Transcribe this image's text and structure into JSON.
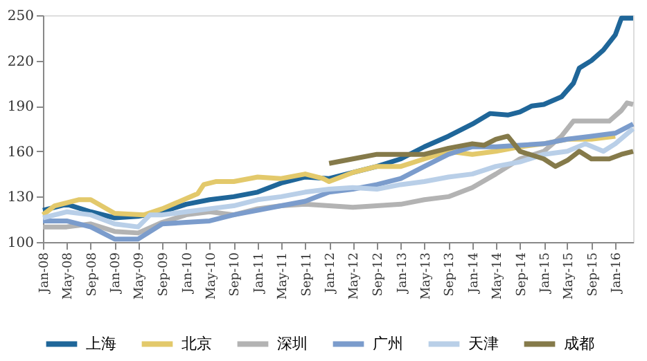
{
  "chart_data": {
    "type": "line",
    "legend": "bottom",
    "grid": false,
    "line_style": "solid",
    "marker": "none",
    "xlim": [
      "2008-01",
      "2016-04"
    ],
    "xticks": [
      {
        "value": "2008-01",
        "label": "Jan-08"
      },
      {
        "value": "2008-05",
        "label": "May-08"
      },
      {
        "value": "2008-09",
        "label": "Sep-08"
      },
      {
        "value": "2009-01",
        "label": "Jan-09"
      },
      {
        "value": "2009-05",
        "label": "May-09"
      },
      {
        "value": "2009-09",
        "label": "Sep-09"
      },
      {
        "value": "2010-01",
        "label": "Jan-10"
      },
      {
        "value": "2010-05",
        "label": "May-10"
      },
      {
        "value": "2010-09",
        "label": "Sep-10"
      },
      {
        "value": "2011-01",
        "label": "Jan-11"
      },
      {
        "value": "2011-05",
        "label": "May-11"
      },
      {
        "value": "2011-09",
        "label": "Sep-11"
      },
      {
        "value": "2012-01",
        "label": "Jan-12"
      },
      {
        "value": "2012-05",
        "label": "May-12"
      },
      {
        "value": "2012-09",
        "label": "Sep-12"
      },
      {
        "value": "2013-01",
        "label": "Jan-13"
      },
      {
        "value": "2013-05",
        "label": "May-13"
      },
      {
        "value": "2013-09",
        "label": "Sep-13"
      },
      {
        "value": "2014-01",
        "label": "Jan-14"
      },
      {
        "value": "2014-05",
        "label": "May-14"
      },
      {
        "value": "2014-09",
        "label": "Sep-14"
      },
      {
        "value": "2015-01",
        "label": "Jan-15"
      },
      {
        "value": "2015-05",
        "label": "May-15"
      },
      {
        "value": "2015-09",
        "label": "Sep-15"
      },
      {
        "value": "2016-01",
        "label": "Jan-16"
      }
    ],
    "ylim": [
      100,
      250
    ],
    "yticks": [
      100,
      130,
      160,
      190,
      220,
      250
    ],
    "series": [
      {
        "name": "上海",
        "color": "#1f6699",
        "x": [
          "2008-01",
          "2008-05",
          "2008-09",
          "2009-01",
          "2009-05",
          "2009-09",
          "2010-01",
          "2010-05",
          "2010-09",
          "2011-01",
          "2011-05",
          "2011-09",
          "2012-01",
          "2012-05",
          "2012-09",
          "2013-01",
          "2013-05",
          "2013-09",
          "2014-01",
          "2014-04",
          "2014-07",
          "2014-09",
          "2014-11",
          "2015-01",
          "2015-04",
          "2015-06",
          "2015-07",
          "2015-09",
          "2015-11",
          "2016-01",
          "2016-02",
          "2016-04"
        ],
        "values": [
          121,
          125,
          120,
          116,
          117,
          120,
          125,
          128,
          130,
          133,
          139,
          143,
          142,
          146,
          150,
          155,
          163,
          170,
          178,
          185,
          184,
          186,
          190,
          191,
          196,
          205,
          215,
          220,
          227,
          237,
          248,
          248
        ]
      },
      {
        "name": "北京",
        "color": "#e3c96b",
        "x": [
          "2008-01",
          "2008-03",
          "2008-07",
          "2008-09",
          "2009-01",
          "2009-06",
          "2009-09",
          "2009-12",
          "2010-03",
          "2010-04",
          "2010-06",
          "2010-09",
          "2011-01",
          "2011-05",
          "2011-09",
          "2011-12",
          "2012-01",
          "2012-05",
          "2012-09",
          "2013-01",
          "2013-05",
          "2013-09",
          "2014-01",
          "2014-05",
          "2014-09",
          "2015-01",
          "2015-05",
          "2015-09",
          "2016-01"
        ],
        "values": [
          118,
          124,
          128,
          128,
          119,
          118,
          122,
          127,
          132,
          138,
          140,
          140,
          143,
          142,
          145,
          142,
          140,
          146,
          150,
          150,
          155,
          160,
          158,
          160,
          163,
          165,
          168,
          168,
          170
        ]
      },
      {
        "name": "深圳",
        "color": "#b3b3b3",
        "x": [
          "2008-01",
          "2008-05",
          "2008-09",
          "2009-01",
          "2009-05",
          "2009-09",
          "2010-01",
          "2010-05",
          "2010-09",
          "2011-01",
          "2011-05",
          "2011-09",
          "2012-01",
          "2012-05",
          "2012-09",
          "2013-01",
          "2013-05",
          "2013-09",
          "2014-01",
          "2014-05",
          "2014-09",
          "2015-01",
          "2015-04",
          "2015-06",
          "2015-09",
          "2015-12",
          "2016-02",
          "2016-03",
          "2016-04"
        ],
        "values": [
          110,
          110,
          112,
          107,
          106,
          113,
          118,
          120,
          118,
          122,
          124,
          125,
          124,
          123,
          124,
          125,
          128,
          130,
          136,
          145,
          155,
          160,
          170,
          180,
          180,
          180,
          187,
          192,
          191
        ]
      },
      {
        "name": "广州",
        "color": "#7b9ccc",
        "x": [
          "2008-01",
          "2008-05",
          "2008-09",
          "2009-01",
          "2009-05",
          "2009-09",
          "2010-01",
          "2010-05",
          "2010-09",
          "2011-01",
          "2011-05",
          "2011-09",
          "2012-01",
          "2012-05",
          "2012-09",
          "2013-01",
          "2013-05",
          "2013-09",
          "2014-01",
          "2014-05",
          "2014-09",
          "2015-01",
          "2015-05",
          "2015-09",
          "2016-01",
          "2016-04"
        ],
        "values": [
          114,
          114,
          110,
          102,
          102,
          112,
          113,
          114,
          118,
          121,
          124,
          127,
          133,
          135,
          138,
          142,
          150,
          158,
          163,
          163,
          164,
          165,
          168,
          170,
          172,
          178
        ]
      },
      {
        "name": "天津",
        "color": "#b9cfe8",
        "x": [
          "2008-01",
          "2008-05",
          "2008-09",
          "2009-01",
          "2009-05",
          "2009-07",
          "2009-09",
          "2010-01",
          "2010-05",
          "2010-09",
          "2011-01",
          "2011-05",
          "2011-09",
          "2012-01",
          "2012-05",
          "2012-09",
          "2013-01",
          "2013-05",
          "2013-09",
          "2014-01",
          "2014-05",
          "2014-09",
          "2015-01",
          "2015-05",
          "2015-08",
          "2015-11",
          "2016-01",
          "2016-04"
        ],
        "values": [
          116,
          120,
          118,
          112,
          110,
          118,
          118,
          120,
          122,
          124,
          128,
          130,
          133,
          135,
          136,
          135,
          138,
          140,
          143,
          145,
          150,
          153,
          158,
          160,
          165,
          160,
          165,
          175
        ]
      },
      {
        "name": "成都",
        "color": "#857a4a",
        "x": [
          "2012-01",
          "2012-05",
          "2012-09",
          "2013-01",
          "2013-05",
          "2013-09",
          "2014-01",
          "2014-03",
          "2014-05",
          "2014-07",
          "2014-09",
          "2015-01",
          "2015-03",
          "2015-05",
          "2015-07",
          "2015-09",
          "2015-12",
          "2016-02",
          "2016-04"
        ],
        "values": [
          152,
          155,
          158,
          158,
          158,
          162,
          165,
          164,
          168,
          170,
          160,
          155,
          150,
          154,
          160,
          155,
          155,
          158,
          160
        ]
      }
    ]
  }
}
